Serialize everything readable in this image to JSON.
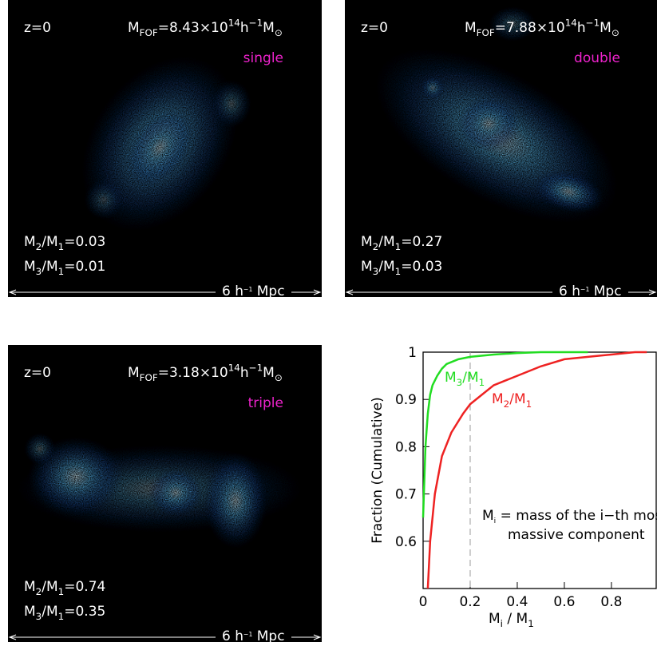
{
  "panels": [
    {
      "redshift": "z=0",
      "mass": [
        [
          "M",
          ""
        ],
        [
          "FOF",
          "sub"
        ],
        [
          "=8.43×10",
          ""
        ],
        [
          "14",
          "sup"
        ],
        [
          "h",
          ""
        ],
        [
          "−1",
          "sup"
        ],
        [
          "M",
          ""
        ],
        [
          "⊙",
          "sub"
        ]
      ],
      "morphology": "single",
      "ratios": [
        [
          [
            "M",
            ""
          ],
          [
            "2",
            "sub"
          ],
          [
            "/M",
            ""
          ],
          [
            "1",
            "sub"
          ],
          [
            "=0.03",
            ""
          ]
        ],
        [
          [
            "M",
            ""
          ],
          [
            "3",
            "sub"
          ],
          [
            "/M",
            ""
          ],
          [
            "1",
            "sub"
          ],
          [
            "=0.01",
            ""
          ]
        ]
      ],
      "scale": [
        [
          "6 h",
          ""
        ],
        [
          "−1",
          "sup"
        ],
        [
          " Mpc",
          ""
        ]
      ]
    },
    {
      "redshift": "z=0",
      "mass": [
        [
          "M",
          ""
        ],
        [
          "FOF",
          "sub"
        ],
        [
          "=7.88×10",
          ""
        ],
        [
          "14",
          "sup"
        ],
        [
          "h",
          ""
        ],
        [
          "−1",
          "sup"
        ],
        [
          "M",
          ""
        ],
        [
          "⊙",
          "sub"
        ]
      ],
      "morphology": "double",
      "ratios": [
        [
          [
            "M",
            ""
          ],
          [
            "2",
            "sub"
          ],
          [
            "/M",
            ""
          ],
          [
            "1",
            "sub"
          ],
          [
            "=0.27",
            ""
          ]
        ],
        [
          [
            "M",
            ""
          ],
          [
            "3",
            "sub"
          ],
          [
            "/M",
            ""
          ],
          [
            "1",
            "sub"
          ],
          [
            "=0.03",
            ""
          ]
        ]
      ],
      "scale": [
        [
          "6 h",
          ""
        ],
        [
          "−1",
          "sup"
        ],
        [
          " Mpc",
          ""
        ]
      ]
    },
    {
      "redshift": "z=0",
      "mass": [
        [
          "M",
          ""
        ],
        [
          "FOF",
          "sub"
        ],
        [
          "=3.18×10",
          ""
        ],
        [
          "14",
          "sup"
        ],
        [
          "h",
          ""
        ],
        [
          "−1",
          "sup"
        ],
        [
          "M",
          ""
        ],
        [
          "⊙",
          "sub"
        ]
      ],
      "morphology": "triple",
      "ratios": [
        [
          [
            "M",
            ""
          ],
          [
            "2",
            "sub"
          ],
          [
            "/M",
            ""
          ],
          [
            "1",
            "sub"
          ],
          [
            "=0.74",
            ""
          ]
        ],
        [
          [
            "M",
            ""
          ],
          [
            "3",
            "sub"
          ],
          [
            "/M",
            ""
          ],
          [
            "1",
            "sub"
          ],
          [
            "=0.35",
            ""
          ]
        ]
      ],
      "scale": [
        [
          "6 h",
          ""
        ],
        [
          "−1",
          "sup"
        ],
        [
          " Mpc",
          ""
        ]
      ]
    }
  ],
  "chart_data": {
    "type": "line",
    "xlabel": [
      [
        "M",
        ""
      ],
      [
        "i",
        "sub"
      ],
      [
        " / M",
        ""
      ],
      [
        "1",
        "sub"
      ]
    ],
    "ylabel": "Fraction (Cumulative)",
    "xlim": [
      0,
      0.98
    ],
    "ylim": [
      0.5,
      1.0
    ],
    "xticks": [
      0,
      0.2,
      0.4,
      0.6,
      0.8
    ],
    "yticks": [
      0.6,
      0.7,
      0.8,
      0.9,
      1
    ],
    "vline": 0.2,
    "annotation": [
      [
        [
          "M",
          ""
        ],
        [
          "i",
          "sub"
        ],
        [
          " = mass of the i−th most",
          ""
        ]
      ],
      [
        [
          "massive component",
          ""
        ]
      ]
    ],
    "series": [
      {
        "name": [
          [
            "M",
            ""
          ],
          [
            "3",
            "sub"
          ],
          [
            "/M",
            ""
          ],
          [
            "1",
            "sub"
          ]
        ],
        "color": "#22dd22",
        "x": [
          0.0,
          0.01,
          0.02,
          0.03,
          0.04,
          0.06,
          0.08,
          0.1,
          0.15,
          0.2,
          0.3,
          0.4,
          0.5,
          0.7
        ],
        "values": [
          0.65,
          0.8,
          0.87,
          0.91,
          0.93,
          0.95,
          0.965,
          0.975,
          0.985,
          0.99,
          0.995,
          0.998,
          1.0,
          1.0
        ]
      },
      {
        "name": [
          [
            "M",
            ""
          ],
          [
            "2",
            "sub"
          ],
          [
            "/M",
            ""
          ],
          [
            "1",
            "sub"
          ]
        ],
        "color": "#ee2222",
        "x": [
          0.02,
          0.03,
          0.05,
          0.08,
          0.12,
          0.17,
          0.2,
          0.25,
          0.3,
          0.4,
          0.5,
          0.6,
          0.7,
          0.8,
          0.9,
          0.95
        ],
        "values": [
          0.5,
          0.6,
          0.7,
          0.78,
          0.83,
          0.87,
          0.89,
          0.91,
          0.93,
          0.95,
          0.97,
          0.985,
          0.99,
          0.995,
          1.0,
          1.0
        ]
      }
    ]
  }
}
